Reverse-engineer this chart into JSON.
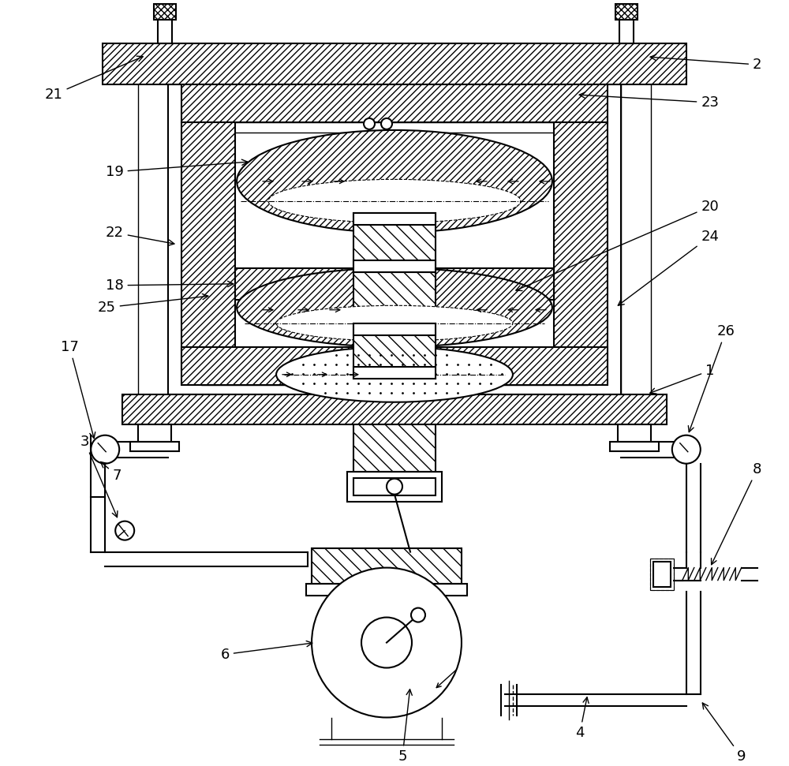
{
  "bg_color": "#ffffff",
  "line_color": "#000000",
  "fig_width": 10.0,
  "fig_height": 9.71,
  "label_fs": 13
}
